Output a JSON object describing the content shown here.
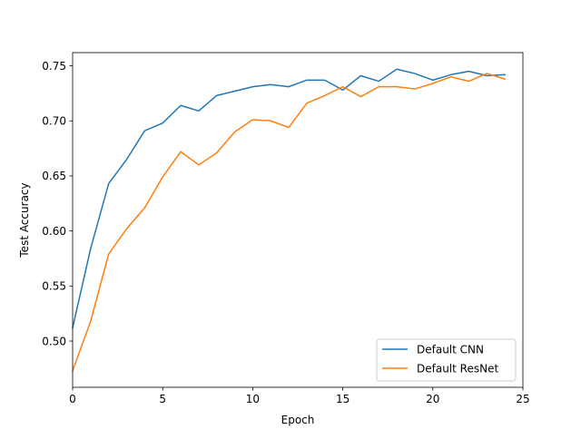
{
  "chart_data": {
    "type": "line",
    "title": "",
    "xlabel": "Epoch",
    "ylabel": "Test Accuracy",
    "xlim": [
      0,
      25
    ],
    "ylim": [
      0.458,
      0.762
    ],
    "xticks": [
      0,
      5,
      10,
      15,
      20,
      25
    ],
    "yticks": [
      0.5,
      0.55,
      0.6,
      0.65,
      0.7,
      0.75
    ],
    "ytick_labels": [
      "0.50",
      "0.55",
      "0.60",
      "0.65",
      "0.70",
      "0.75"
    ],
    "grid": false,
    "legend_position": "lower-right",
    "x": [
      0,
      1,
      2,
      3,
      4,
      5,
      6,
      7,
      8,
      9,
      10,
      11,
      12,
      13,
      14,
      15,
      16,
      17,
      18,
      19,
      20,
      21,
      22,
      23,
      24
    ],
    "series": [
      {
        "name": "Default CNN",
        "color": "#1f77b4",
        "values": [
          0.512,
          0.584,
          0.643,
          0.665,
          0.691,
          0.698,
          0.714,
          0.709,
          0.723,
          0.727,
          0.731,
          0.733,
          0.731,
          0.737,
          0.737,
          0.728,
          0.741,
          0.736,
          0.747,
          0.743,
          0.737,
          0.742,
          0.745,
          0.741,
          0.742
        ]
      },
      {
        "name": "Default ResNet",
        "color": "#ff7f0e",
        "values": [
          0.473,
          0.518,
          0.579,
          0.602,
          0.621,
          0.649,
          0.672,
          0.66,
          0.671,
          0.69,
          0.701,
          0.7,
          0.694,
          0.716,
          0.723,
          0.731,
          0.722,
          0.731,
          0.731,
          0.729,
          0.734,
          0.74,
          0.736,
          0.743,
          0.738
        ]
      }
    ]
  }
}
